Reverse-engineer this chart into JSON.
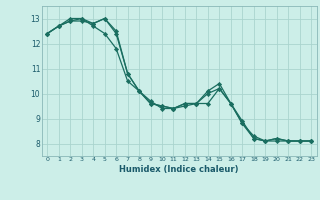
{
  "xlabel": "Humidex (Indice chaleur)",
  "ylabel": "",
  "bg_color": "#cceee8",
  "grid_color": "#aad4ce",
  "line_color": "#1a6e60",
  "marker_color": "#1a6e60",
  "xlim": [
    -0.5,
    23.5
  ],
  "ylim": [
    7.5,
    13.5
  ],
  "yticks": [
    8,
    9,
    10,
    11,
    12,
    13
  ],
  "xticks": [
    0,
    1,
    2,
    3,
    4,
    5,
    6,
    7,
    8,
    9,
    10,
    11,
    12,
    13,
    14,
    15,
    16,
    17,
    18,
    19,
    20,
    21,
    22,
    23
  ],
  "series": [
    {
      "x": [
        0,
        1,
        2,
        3,
        4,
        5,
        6,
        7,
        8,
        9,
        10,
        11,
        12,
        13,
        14,
        15,
        16,
        17,
        18,
        19,
        20,
        21,
        22,
        23
      ],
      "y": [
        12.4,
        12.7,
        13.0,
        13.0,
        12.7,
        12.4,
        11.8,
        10.5,
        10.1,
        9.7,
        9.4,
        9.4,
        9.6,
        9.6,
        10.1,
        10.4,
        9.6,
        8.8,
        8.3,
        8.1,
        8.2,
        8.1,
        8.1,
        8.1
      ]
    },
    {
      "x": [
        0,
        1,
        2,
        3,
        4,
        5,
        6,
        7,
        8,
        9,
        10,
        11,
        12,
        13,
        14,
        15,
        16,
        17,
        18,
        19,
        20,
        21,
        22,
        23
      ],
      "y": [
        12.4,
        12.7,
        12.9,
        12.9,
        12.8,
        13.0,
        12.5,
        10.8,
        10.1,
        9.6,
        9.5,
        9.4,
        9.5,
        9.6,
        9.6,
        10.2,
        9.6,
        8.9,
        8.2,
        8.1,
        8.1,
        8.1,
        8.1,
        8.1
      ]
    },
    {
      "x": [
        0,
        1,
        2,
        3,
        4,
        5,
        6,
        7,
        8,
        9,
        10,
        11,
        12,
        13,
        14,
        15,
        16,
        17,
        18,
        19,
        20,
        21,
        22,
        23
      ],
      "y": [
        12.4,
        12.7,
        12.9,
        13.0,
        12.8,
        13.0,
        12.4,
        10.8,
        10.1,
        9.6,
        9.5,
        9.4,
        9.6,
        9.6,
        10.0,
        10.2,
        9.6,
        8.8,
        8.2,
        8.1,
        8.2,
        8.1,
        8.1,
        8.1
      ]
    }
  ]
}
